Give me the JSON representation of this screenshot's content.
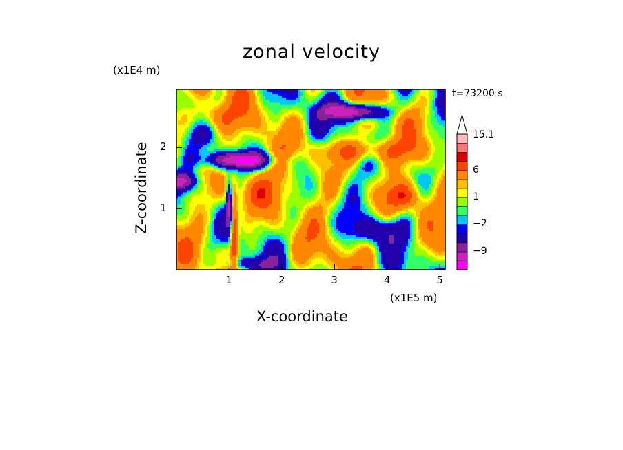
{
  "chart_data": {
    "type": "heatmap",
    "title": "zonal velocity",
    "xlabel": "X-coordinate",
    "ylabel": "Z-coordinate",
    "x_unit": "(x1E5 m)",
    "z_unit": "(x1E4 m)",
    "time_label": "t=73200 s",
    "xlim": [
      0,
      5.1
    ],
    "ylim": [
      0,
      2.95
    ],
    "x_ticks": [
      "1",
      "2",
      "3",
      "4",
      "5"
    ],
    "y_ticks": [
      "1",
      "2"
    ],
    "colorbar": {
      "tick_labels": [
        "15.1",
        "6",
        "1",
        "-2",
        "-9"
      ],
      "levels": [
        -15,
        -12,
        -9,
        -6,
        -3,
        -2,
        -1,
        0,
        1,
        2,
        3,
        6,
        9,
        12,
        15.1
      ],
      "colors": [
        "#ff00ff",
        "#cc22bb",
        "#882299",
        "#2200aa",
        "#0000ff",
        "#00c8ff",
        "#33ff66",
        "#99ff00",
        "#ffff00",
        "#ffc000",
        "#ff8800",
        "#ff4400",
        "#dd0000",
        "#ff7777",
        "#ffbbbb"
      ],
      "top_extension_color": "#ffffff",
      "extend": "max"
    }
  }
}
